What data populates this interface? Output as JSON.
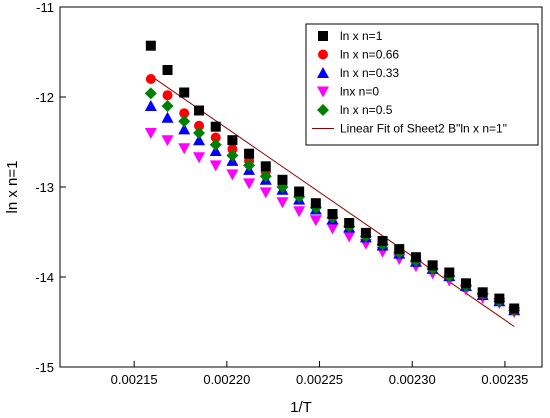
{
  "chart_data": {
    "type": "scatter",
    "title": "",
    "xlabel": "1/T",
    "ylabel": "ln x  n=1",
    "xlim": [
      0.00211,
      0.00237
    ],
    "ylim": [
      -15,
      -11
    ],
    "xticks": [
      {
        "value": 0.00215,
        "label": "0.00215"
      },
      {
        "value": 0.0022,
        "label": "0.00220"
      },
      {
        "value": 0.00225,
        "label": "0.00225"
      },
      {
        "value": 0.0023,
        "label": "0.00230"
      },
      {
        "value": 0.00235,
        "label": "0.00235"
      }
    ],
    "yticks": [
      {
        "value": -11,
        "label": "-11"
      },
      {
        "value": -12,
        "label": "-12"
      },
      {
        "value": -13,
        "label": "-13"
      },
      {
        "value": -14,
        "label": "-14"
      },
      {
        "value": -15,
        "label": "-15"
      }
    ],
    "legend_position": "top-right",
    "grid": false,
    "series": [
      {
        "name": "ln x  n=1",
        "marker": "square",
        "color": "#000000",
        "x": [
          0.002159,
          0.002168,
          0.002177,
          0.002185,
          0.002194,
          0.002203,
          0.002212,
          0.002221,
          0.00223,
          0.002239,
          0.002248,
          0.002257,
          0.002266,
          0.002275,
          0.002284,
          0.002293,
          0.002302,
          0.002311,
          0.00232,
          0.002329,
          0.002338,
          0.002347,
          0.002355
        ],
        "y": [
          -11.43,
          -11.7,
          -11.95,
          -12.15,
          -12.33,
          -12.48,
          -12.63,
          -12.77,
          -12.92,
          -13.05,
          -13.18,
          -13.3,
          -13.4,
          -13.51,
          -13.6,
          -13.69,
          -13.78,
          -13.87,
          -13.95,
          -14.07,
          -14.17,
          -14.24,
          -14.35
        ]
      },
      {
        "name": "ln x n=0.66",
        "marker": "circle",
        "color": "#ff0000",
        "x": [
          0.002159,
          0.002168,
          0.002177,
          0.002185,
          0.002194,
          0.002203,
          0.002212,
          0.002221,
          0.00223,
          0.002239,
          0.002248,
          0.002257,
          0.002266,
          0.002275,
          0.002284,
          0.002293,
          0.002302,
          0.002311,
          0.00232,
          0.002329,
          0.002338,
          0.002347,
          0.002355
        ],
        "y": [
          -11.8,
          -11.98,
          -12.18,
          -12.32,
          -12.45,
          -12.58,
          -12.71,
          -12.83,
          -12.97,
          -13.09,
          -13.21,
          -13.33,
          -13.43,
          -13.54,
          -13.63,
          -13.72,
          -13.81,
          -13.9,
          -13.98,
          -14.09,
          -14.19,
          -14.26,
          -14.37
        ]
      },
      {
        "name": "ln x n=0.33",
        "marker": "triangle-up",
        "color": "#0000ff",
        "x": [
          0.002159,
          0.002168,
          0.002177,
          0.002185,
          0.002194,
          0.002203,
          0.002212,
          0.002221,
          0.00223,
          0.002239,
          0.002248,
          0.002257,
          0.002266,
          0.002275,
          0.002284,
          0.002293,
          0.002302,
          0.002311,
          0.00232,
          0.002329,
          0.002338,
          0.002347,
          0.002355
        ],
        "y": [
          -12.1,
          -12.23,
          -12.36,
          -12.48,
          -12.6,
          -12.71,
          -12.81,
          -12.92,
          -13.03,
          -13.14,
          -13.25,
          -13.36,
          -13.45,
          -13.56,
          -13.65,
          -13.74,
          -13.83,
          -13.91,
          -13.99,
          -14.1,
          -14.2,
          -14.27,
          -14.37
        ]
      },
      {
        "name": "lnx n=0",
        "marker": "triangle-down",
        "color": "#ff00ff",
        "x": [
          0.002159,
          0.002168,
          0.002177,
          0.002185,
          0.002194,
          0.002203,
          0.002212,
          0.002221,
          0.00223,
          0.002239,
          0.002248,
          0.002257,
          0.002266,
          0.002275,
          0.002284,
          0.002293,
          0.002302,
          0.002311,
          0.00232,
          0.002329,
          0.002338,
          0.002347,
          0.002355
        ],
        "y": [
          -12.4,
          -12.48,
          -12.57,
          -12.67,
          -12.76,
          -12.86,
          -12.96,
          -13.06,
          -13.17,
          -13.27,
          -13.37,
          -13.46,
          -13.55,
          -13.63,
          -13.72,
          -13.8,
          -13.88,
          -13.96,
          -14.04,
          -14.14,
          -14.23,
          -14.29,
          -14.39
        ]
      },
      {
        "name": "ln x n=0.5",
        "marker": "diamond",
        "color": "#008000",
        "x": [
          0.002159,
          0.002168,
          0.002177,
          0.002185,
          0.002194,
          0.002203,
          0.002212,
          0.002221,
          0.00223,
          0.002239,
          0.002248,
          0.002257,
          0.002266,
          0.002275,
          0.002284,
          0.002293,
          0.002302,
          0.002311,
          0.00232,
          0.002329,
          0.002338,
          0.002347,
          0.002355
        ],
        "y": [
          -11.96,
          -12.1,
          -12.27,
          -12.4,
          -12.53,
          -12.65,
          -12.76,
          -12.88,
          -13.0,
          -13.11,
          -13.23,
          -13.34,
          -13.44,
          -13.55,
          -13.64,
          -13.73,
          -13.82,
          -13.91,
          -13.99,
          -14.1,
          -14.19,
          -14.27,
          -14.37
        ]
      }
    ],
    "fit_line": {
      "name": "Linear Fit of Sheet2 B\"ln x  n=1\"",
      "color": "#8b0000",
      "x": [
        0.00216,
        0.002355
      ],
      "y": [
        -11.78,
        -14.55
      ]
    }
  }
}
